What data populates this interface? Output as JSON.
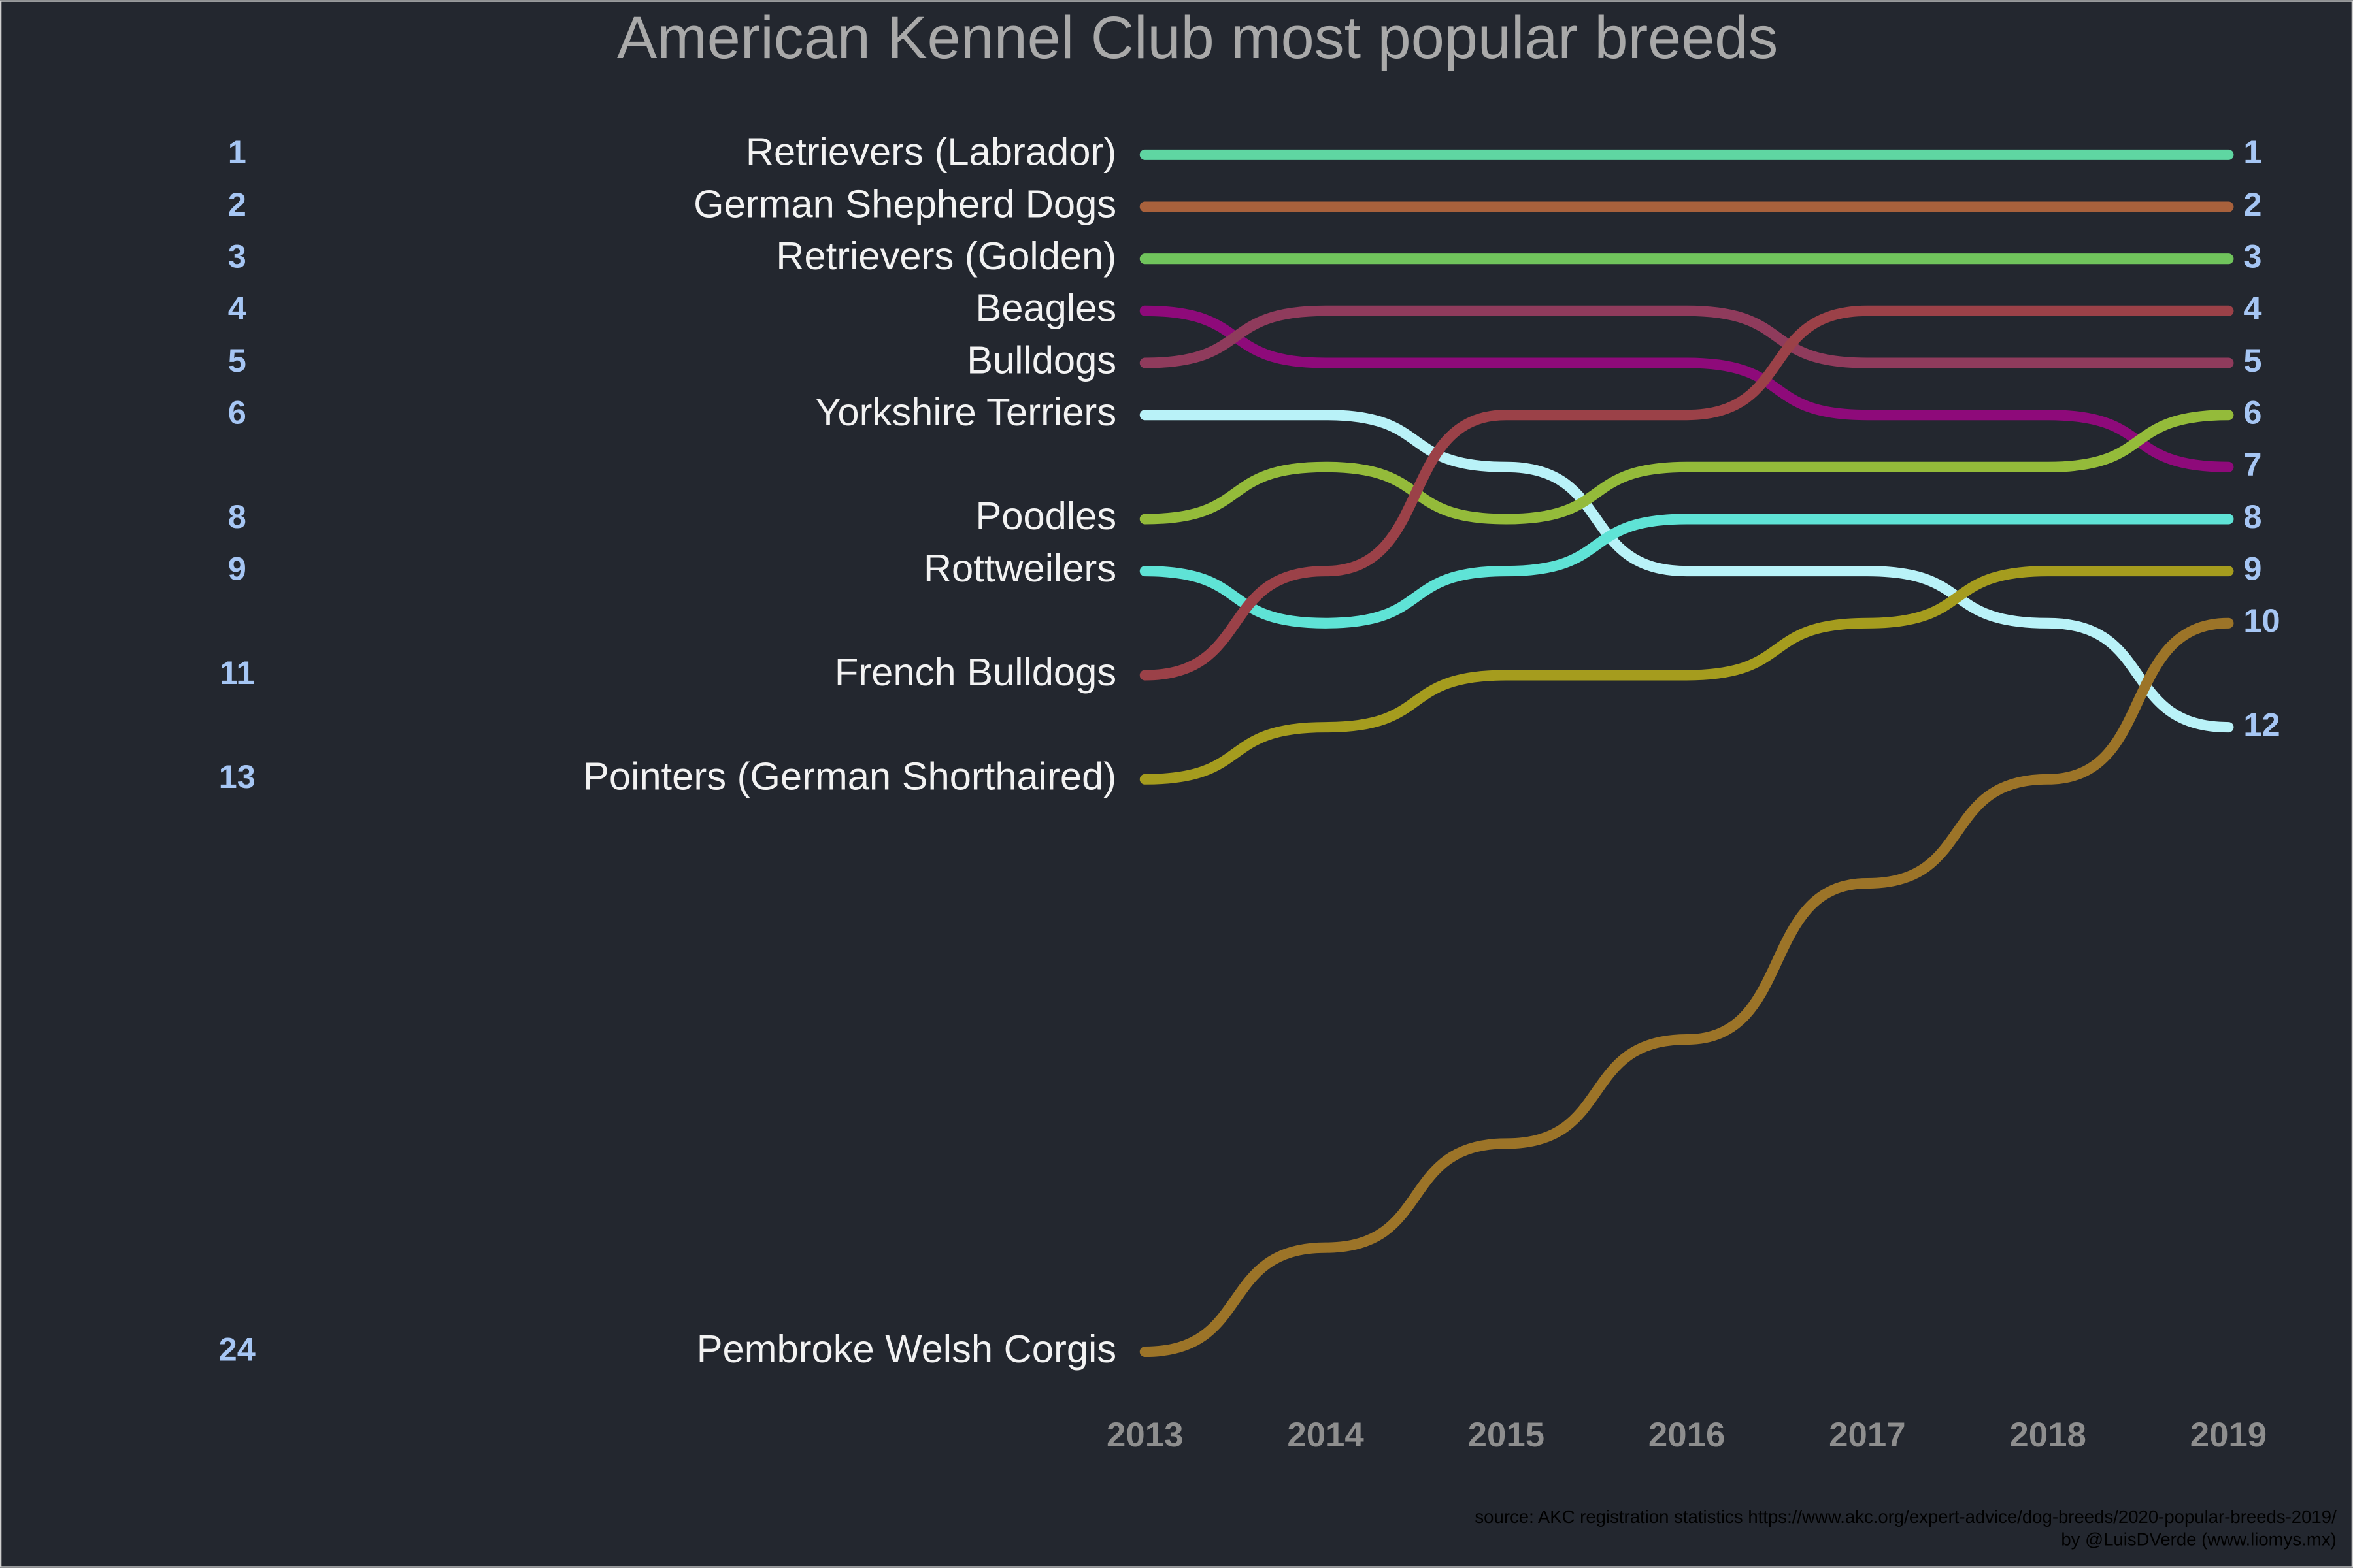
{
  "chart_data": {
    "type": "bump",
    "title": "American Kennel Club most popular breeds",
    "caption": [
      "source: AKC registration statistics  https://www.akc.org/expert-advice/dog-breeds/2020-popular-breeds-2019/",
      "by @LuisDVerde (www.liomys.mx)"
    ],
    "categories": [
      "2013",
      "2014",
      "2015",
      "2016",
      "2017",
      "2018",
      "2019"
    ],
    "ylim": [
      1,
      24
    ],
    "y_reversed": true,
    "series": [
      {
        "name": "Retrievers (Labrador)",
        "color": "#5fd6a2",
        "values": [
          1,
          1,
          1,
          1,
          1,
          1,
          1
        ]
      },
      {
        "name": "German Shepherd Dogs",
        "color": "#a8613c",
        "values": [
          2,
          2,
          2,
          2,
          2,
          2,
          2
        ]
      },
      {
        "name": "Retrievers (Golden)",
        "color": "#70c45c",
        "values": [
          3,
          3,
          3,
          3,
          3,
          3,
          3
        ]
      },
      {
        "name": "Beagles",
        "color": "#8e0a7a",
        "values": [
          4,
          5,
          5,
          5,
          6,
          6,
          7
        ]
      },
      {
        "name": "Bulldogs",
        "color": "#8f3b5c",
        "values": [
          5,
          4,
          4,
          4,
          5,
          5,
          5
        ]
      },
      {
        "name": "Yorkshire Terriers",
        "color": "#b9f2f8",
        "values": [
          6,
          6,
          7,
          9,
          9,
          10,
          12
        ]
      },
      {
        "name": "Poodles",
        "color": "#94bb3a",
        "values": [
          8,
          7,
          8,
          7,
          7,
          7,
          6
        ]
      },
      {
        "name": "Rottweilers",
        "color": "#5fe3d6",
        "values": [
          9,
          10,
          9,
          8,
          8,
          8,
          8
        ]
      },
      {
        "name": "French Bulldogs",
        "color": "#9b4148",
        "values": [
          11,
          9,
          6,
          6,
          4,
          4,
          4
        ]
      },
      {
        "name": "Pointers (German Shorthaired)",
        "color": "#a59c1e",
        "values": [
          13,
          12,
          11,
          11,
          10,
          9,
          9
        ]
      },
      {
        "name": "Pembroke Welsh Corgis",
        "color": "#9c7428",
        "values": [
          24,
          22,
          20,
          18,
          15,
          13,
          10
        ]
      }
    ]
  }
}
